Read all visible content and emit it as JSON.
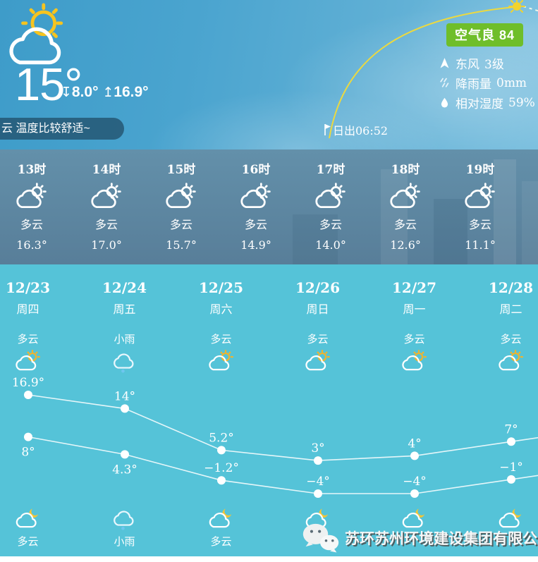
{
  "current": {
    "temp": "15°",
    "min_arrow": "↧",
    "min": "8.0°",
    "max_arrow": "↥",
    "max": "16.9°",
    "comfort_text": "云 温度比较舒适~",
    "condition_icon": "partly-cloudy-hero"
  },
  "air": {
    "badge": "空气良  84",
    "badge_color": "#6fbe2a",
    "wind": {
      "icon": "wind-arrow",
      "label": "东风",
      "value": "3级"
    },
    "rain": {
      "icon": "rain-hatch",
      "label": "降雨量",
      "value": "0mm"
    },
    "humidity": {
      "icon": "water-drop",
      "label": "相对湿度",
      "value": "59%"
    }
  },
  "sun": {
    "sunrise": "日出06:52",
    "arc_color": "#ecd93f"
  },
  "hourly": [
    {
      "time": "13时",
      "condition": "多云",
      "temp": "16.3°",
      "icon": "partly-cloudy-white"
    },
    {
      "time": "14时",
      "condition": "多云",
      "temp": "17.0°",
      "icon": "partly-cloudy-white"
    },
    {
      "time": "15时",
      "condition": "多云",
      "temp": "15.7°",
      "icon": "partly-cloudy-white"
    },
    {
      "time": "16时",
      "condition": "多云",
      "temp": "14.9°",
      "icon": "partly-cloudy-white"
    },
    {
      "time": "17时",
      "condition": "多云",
      "temp": "14.0°",
      "icon": "partly-cloudy-white"
    },
    {
      "time": "18时",
      "condition": "多云",
      "temp": "12.6°",
      "icon": "partly-cloudy-white"
    },
    {
      "time": "19时",
      "condition": "多云",
      "temp": "11.1°",
      "icon": "partly-cloudy-white"
    }
  ],
  "daily": [
    {
      "date": "12/23",
      "weekday": "周四",
      "day_condition": "多云",
      "day_icon": "partly-cloudy-day",
      "night_condition": "多云",
      "night_icon": "cloud-moon"
    },
    {
      "date": "12/24",
      "weekday": "周五",
      "day_condition": "小雨",
      "day_icon": "light-rain",
      "night_condition": "小雨",
      "night_icon": "light-rain"
    },
    {
      "date": "12/25",
      "weekday": "周六",
      "day_condition": "多云",
      "day_icon": "partly-cloudy-day",
      "night_condition": "多云",
      "night_icon": "cloud-moon"
    },
    {
      "date": "12/26",
      "weekday": "周日",
      "day_condition": "多云",
      "day_icon": "partly-cloudy-day",
      "night_condition": "",
      "night_icon": "cloud-moon"
    },
    {
      "date": "12/27",
      "weekday": "周一",
      "day_condition": "多云",
      "day_icon": "partly-cloudy-day",
      "night_condition": "",
      "night_icon": "cloud-moon"
    },
    {
      "date": "12/28",
      "weekday": "周二",
      "day_condition": "多云",
      "day_icon": "partly-cloudy-day",
      "night_condition": "",
      "night_icon": "cloud-moon"
    }
  ],
  "chart_data": {
    "type": "line",
    "categories": [
      "12/23",
      "12/24",
      "12/25",
      "12/26",
      "12/27",
      "12/28"
    ],
    "series": [
      {
        "name": "day-high",
        "values": [
          16.9,
          14,
          5.2,
          3,
          4,
          7
        ],
        "labels": [
          "16.9°",
          "14°",
          "5.2°",
          "3°",
          "4°",
          "7°"
        ]
      },
      {
        "name": "night-low",
        "values": [
          8,
          4.3,
          -1.2,
          -4,
          -4,
          -1
        ],
        "labels": [
          "8°",
          "4.3°",
          "−1.2°",
          "−4°",
          "−4°",
          "−1°"
        ]
      }
    ],
    "ylim": [
      -4,
      16.9
    ],
    "grid": false,
    "line_color": "#ffffff",
    "point_color": "#ffffff"
  },
  "watermark": {
    "text": "苏环苏州环境建设集团有限公司"
  }
}
